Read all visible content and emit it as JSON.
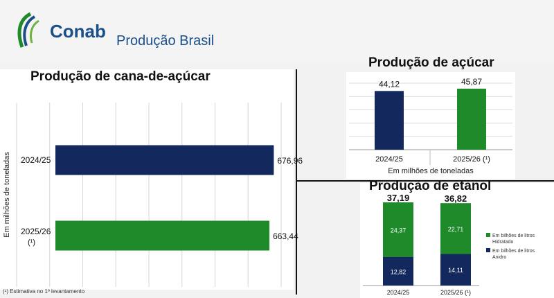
{
  "header": {
    "logo_text": "Conab",
    "section_title": "Produção Brasil"
  },
  "footnote": "(¹) Estimativa no 1º levantamento",
  "colors": {
    "navy": "#13285c",
    "green": "#1e8a2a",
    "brand_blue": "#1a4f8a"
  },
  "chart_data": [
    {
      "type": "bar",
      "orientation": "horizontal",
      "title": "Produção de cana-de-açúcar",
      "ylabel": "Em milhões de toneladas",
      "categories": [
        "2024/25",
        "2025/26 (¹)"
      ],
      "values": [
        676.96,
        663.44
      ],
      "value_labels": [
        "676,96",
        "663,44"
      ],
      "colors": [
        "#13285c",
        "#1e8a2a"
      ],
      "xlim": [
        0,
        820
      ],
      "grid": true
    },
    {
      "type": "bar",
      "title": "Produção de açúcar",
      "xlabel": "Em milhões de toneladas",
      "categories": [
        "2024/25",
        "2025/26 (¹)"
      ],
      "values": [
        44.12,
        45.87
      ],
      "value_labels": [
        "44,12",
        "45,87"
      ],
      "colors": [
        "#13285c",
        "#1e8a2a"
      ],
      "ylim": [
        0,
        50
      ],
      "grid": true
    },
    {
      "type": "bar",
      "stacked": true,
      "title": "Produção de etanol",
      "categories": [
        "2024/25",
        "2025/26 (¹)"
      ],
      "totals": [
        37.19,
        36.82
      ],
      "total_labels": [
        "37,19",
        "36,82"
      ],
      "series": [
        {
          "name": "Em bilhões de litros Anidro",
          "values": [
            12.82,
            14.11
          ],
          "labels": [
            "12,82",
            "14,11"
          ],
          "color": "#13285c"
        },
        {
          "name": "Em bilhões de litros Hidratado",
          "values": [
            24.37,
            22.71
          ],
          "labels": [
            "24,37",
            "22,71"
          ],
          "color": "#1e8a2a"
        }
      ],
      "ylim": [
        0,
        37.19
      ],
      "legend": "right"
    }
  ]
}
